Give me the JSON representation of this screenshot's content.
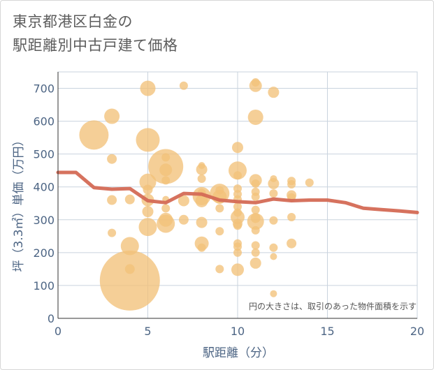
{
  "chart_data": {
    "type": "scatter",
    "title_lines": [
      "東京都港区白金の",
      "駅距離別中古戸建て価格"
    ],
    "xlabel": "駅距離（分）",
    "ylabel": "坪（3.3㎡）単価（万円）",
    "xlim": [
      0,
      20
    ],
    "ylim": [
      0,
      750
    ],
    "x_ticks": [
      0,
      5,
      10,
      15,
      20
    ],
    "y_ticks": [
      0,
      100,
      200,
      300,
      400,
      500,
      600,
      700
    ],
    "grid": true,
    "annotation": "円の大きさは、取引のあった物件面積を示す",
    "colors": {
      "bubble": "#f2c27a",
      "line": "#d46a55",
      "grid": "#c9d3de",
      "tick": "#4d6584"
    },
    "bubbles": [
      {
        "x": 2,
        "y": 558,
        "r": 21
      },
      {
        "x": 3,
        "y": 615,
        "r": 11
      },
      {
        "x": 3,
        "y": 485,
        "r": 7
      },
      {
        "x": 3,
        "y": 360,
        "r": 7
      },
      {
        "x": 3,
        "y": 260,
        "r": 6
      },
      {
        "x": 4,
        "y": 115,
        "r": 43
      },
      {
        "x": 4,
        "y": 220,
        "r": 13
      },
      {
        "x": 4,
        "y": 362,
        "r": 7
      },
      {
        "x": 4,
        "y": 150,
        "r": 7
      },
      {
        "x": 5,
        "y": 700,
        "r": 11
      },
      {
        "x": 5,
        "y": 543,
        "r": 17
      },
      {
        "x": 5,
        "y": 415,
        "r": 12
      },
      {
        "x": 5,
        "y": 392,
        "r": 7
      },
      {
        "x": 5,
        "y": 360,
        "r": 9
      },
      {
        "x": 5,
        "y": 325,
        "r": 8
      },
      {
        "x": 5,
        "y": 278,
        "r": 13
      },
      {
        "x": 6,
        "y": 462,
        "r": 25
      },
      {
        "x": 6,
        "y": 490,
        "r": 6
      },
      {
        "x": 6,
        "y": 452,
        "r": 9
      },
      {
        "x": 6,
        "y": 420,
        "r": 6
      },
      {
        "x": 6,
        "y": 362,
        "r": 5
      },
      {
        "x": 6,
        "y": 335,
        "r": 6
      },
      {
        "x": 6,
        "y": 300,
        "r": 10
      },
      {
        "x": 6,
        "y": 288,
        "r": 13
      },
      {
        "x": 7,
        "y": 708,
        "r": 6
      },
      {
        "x": 7,
        "y": 358,
        "r": 8
      },
      {
        "x": 7,
        "y": 300,
        "r": 7
      },
      {
        "x": 8,
        "y": 465,
        "r": 5
      },
      {
        "x": 8,
        "y": 453,
        "r": 8
      },
      {
        "x": 8,
        "y": 425,
        "r": 6
      },
      {
        "x": 8,
        "y": 382,
        "r": 6
      },
      {
        "x": 8,
        "y": 372,
        "r": 13
      },
      {
        "x": 8,
        "y": 357,
        "r": 9
      },
      {
        "x": 8,
        "y": 292,
        "r": 8
      },
      {
        "x": 8,
        "y": 228,
        "r": 10
      },
      {
        "x": 8,
        "y": 215,
        "r": 6
      },
      {
        "x": 9,
        "y": 390,
        "r": 6
      },
      {
        "x": 9,
        "y": 380,
        "r": 14
      },
      {
        "x": 9,
        "y": 370,
        "r": 10
      },
      {
        "x": 9,
        "y": 335,
        "r": 6
      },
      {
        "x": 9,
        "y": 265,
        "r": 6
      },
      {
        "x": 9,
        "y": 150,
        "r": 6
      },
      {
        "x": 10,
        "y": 520,
        "r": 8
      },
      {
        "x": 10,
        "y": 450,
        "r": 13
      },
      {
        "x": 10,
        "y": 435,
        "r": 6
      },
      {
        "x": 10,
        "y": 395,
        "r": 6
      },
      {
        "x": 10,
        "y": 378,
        "r": 6
      },
      {
        "x": 10,
        "y": 362,
        "r": 6
      },
      {
        "x": 10,
        "y": 340,
        "r": 6
      },
      {
        "x": 10,
        "y": 322,
        "r": 6
      },
      {
        "x": 10,
        "y": 308,
        "r": 10
      },
      {
        "x": 10,
        "y": 288,
        "r": 7
      },
      {
        "x": 10,
        "y": 282,
        "r": 6
      },
      {
        "x": 10,
        "y": 228,
        "r": 6
      },
      {
        "x": 10,
        "y": 218,
        "r": 6
      },
      {
        "x": 10,
        "y": 200,
        "r": 6
      },
      {
        "x": 10,
        "y": 148,
        "r": 9
      },
      {
        "x": 11,
        "y": 718,
        "r": 6
      },
      {
        "x": 11,
        "y": 708,
        "r": 9
      },
      {
        "x": 11,
        "y": 612,
        "r": 11
      },
      {
        "x": 11,
        "y": 420,
        "r": 9
      },
      {
        "x": 11,
        "y": 410,
        "r": 6
      },
      {
        "x": 11,
        "y": 385,
        "r": 6
      },
      {
        "x": 11,
        "y": 370,
        "r": 6
      },
      {
        "x": 11,
        "y": 330,
        "r": 6
      },
      {
        "x": 11,
        "y": 305,
        "r": 7
      },
      {
        "x": 11,
        "y": 295,
        "r": 12
      },
      {
        "x": 11,
        "y": 268,
        "r": 6
      },
      {
        "x": 11,
        "y": 222,
        "r": 6
      },
      {
        "x": 11,
        "y": 200,
        "r": 6
      },
      {
        "x": 11,
        "y": 168,
        "r": 8
      },
      {
        "x": 12,
        "y": 688,
        "r": 8
      },
      {
        "x": 12,
        "y": 425,
        "r": 5
      },
      {
        "x": 12,
        "y": 410,
        "r": 8
      },
      {
        "x": 12,
        "y": 380,
        "r": 6
      },
      {
        "x": 12,
        "y": 298,
        "r": 6
      },
      {
        "x": 12,
        "y": 215,
        "r": 6
      },
      {
        "x": 12,
        "y": 188,
        "r": 5
      },
      {
        "x": 12,
        "y": 75,
        "r": 5
      },
      {
        "x": 13,
        "y": 418,
        "r": 6
      },
      {
        "x": 13,
        "y": 408,
        "r": 6
      },
      {
        "x": 13,
        "y": 375,
        "r": 7
      },
      {
        "x": 13,
        "y": 368,
        "r": 6
      },
      {
        "x": 13,
        "y": 308,
        "r": 6
      },
      {
        "x": 13,
        "y": 228,
        "r": 7
      },
      {
        "x": 14,
        "y": 413,
        "r": 6
      }
    ],
    "line": [
      {
        "x": 0,
        "y": 444
      },
      {
        "x": 1,
        "y": 444
      },
      {
        "x": 2,
        "y": 398
      },
      {
        "x": 3,
        "y": 393
      },
      {
        "x": 4,
        "y": 395
      },
      {
        "x": 5,
        "y": 358
      },
      {
        "x": 6,
        "y": 352
      },
      {
        "x": 7,
        "y": 380
      },
      {
        "x": 8,
        "y": 378
      },
      {
        "x": 9,
        "y": 360
      },
      {
        "x": 10,
        "y": 355
      },
      {
        "x": 11,
        "y": 352
      },
      {
        "x": 12,
        "y": 363
      },
      {
        "x": 13,
        "y": 358
      },
      {
        "x": 14,
        "y": 360
      },
      {
        "x": 15,
        "y": 360
      },
      {
        "x": 16,
        "y": 352
      },
      {
        "x": 17,
        "y": 335
      },
      {
        "x": 18,
        "y": 331
      },
      {
        "x": 19,
        "y": 327
      },
      {
        "x": 20,
        "y": 322
      }
    ]
  }
}
